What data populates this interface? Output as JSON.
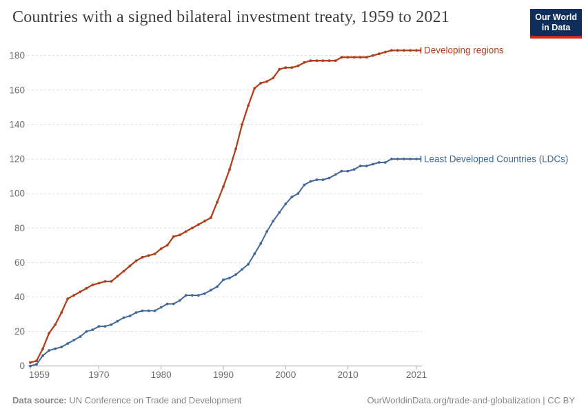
{
  "header": {
    "title": "Countries with a signed bilateral investment treaty, 1959 to 2021",
    "logo": {
      "line1": "Our World",
      "line2": "in Data",
      "bg_color": "#0f2e5c",
      "stripe_color": "#cb2a23"
    }
  },
  "footer": {
    "source_label": "Data source:",
    "source_text": "UN Conference on Trade and Development",
    "right_text": "OurWorldinData.org/trade-and-globalization | CC BY"
  },
  "chart_data": {
    "type": "line",
    "title": "Countries with a signed bilateral investment treaty, 1959 to 2021",
    "xlabel": "",
    "ylabel": "",
    "grid": "horizontal-dashed",
    "legend_position": "end-of-line-labels",
    "xlim": [
      1959,
      2021
    ],
    "ylim": [
      0,
      185
    ],
    "xticks": [
      1959,
      1970,
      1980,
      1990,
      2000,
      2010,
      2021
    ],
    "yticks": [
      0,
      20,
      40,
      60,
      80,
      100,
      120,
      140,
      160,
      180
    ],
    "x": [
      1959,
      1960,
      1961,
      1962,
      1963,
      1964,
      1965,
      1966,
      1967,
      1968,
      1969,
      1970,
      1971,
      1972,
      1973,
      1974,
      1975,
      1976,
      1977,
      1978,
      1979,
      1980,
      1981,
      1982,
      1983,
      1984,
      1985,
      1986,
      1987,
      1988,
      1989,
      1990,
      1991,
      1992,
      1993,
      1994,
      1995,
      1996,
      1997,
      1998,
      1999,
      2000,
      2001,
      2002,
      2003,
      2004,
      2005,
      2006,
      2007,
      2008,
      2009,
      2010,
      2011,
      2012,
      2013,
      2014,
      2015,
      2016,
      2017,
      2018,
      2019,
      2020,
      2021
    ],
    "series": [
      {
        "name": "Developing regions",
        "slug": "developing-regions",
        "color": "#b0401c",
        "values": [
          2,
          3,
          10,
          19,
          24,
          31,
          39,
          41,
          43,
          45,
          47,
          48,
          49,
          49,
          52,
          55,
          58,
          61,
          63,
          64,
          65,
          68,
          70,
          75,
          76,
          78,
          80,
          82,
          84,
          86,
          95,
          104,
          114,
          126,
          140,
          151,
          161,
          164,
          165,
          167,
          172,
          173,
          173,
          174,
          176,
          177,
          177,
          177,
          177,
          177,
          179,
          179,
          179,
          179,
          179,
          180,
          181,
          182,
          183,
          183,
          183,
          183,
          183
        ]
      },
      {
        "name": "Least Developed Countries (LDCs)",
        "slug": "least-developed-countries",
        "color": "#41679b",
        "values": [
          0,
          1,
          6,
          9,
          10,
          11,
          13,
          15,
          17,
          20,
          21,
          23,
          23,
          24,
          26,
          28,
          29,
          31,
          32,
          32,
          32,
          34,
          36,
          36,
          38,
          41,
          41,
          41,
          42,
          44,
          46,
          50,
          51,
          53,
          56,
          59,
          65,
          71,
          78,
          84,
          89,
          94,
          98,
          100,
          105,
          107,
          108,
          108,
          109,
          111,
          113,
          113,
          114,
          116,
          116,
          117,
          118,
          118,
          120,
          120,
          120,
          120,
          120
        ]
      }
    ],
    "style": {
      "grid_color": "#dcdcdc",
      "axis_color": "#adadad",
      "tick_label_color": "#6b6b6b"
    }
  }
}
